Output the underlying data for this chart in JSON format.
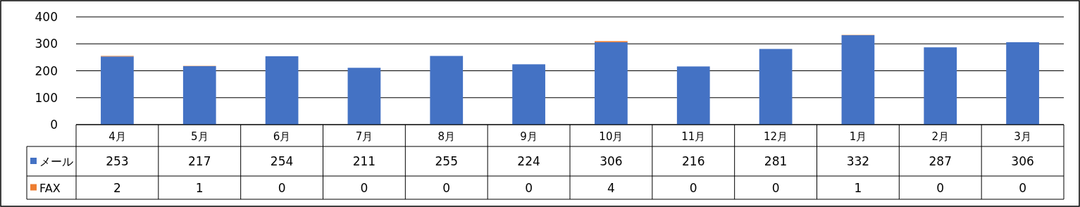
{
  "chart_data": {
    "type": "bar",
    "stacked": true,
    "categories": [
      "4月",
      "5月",
      "6月",
      "7月",
      "8月",
      "9月",
      "10月",
      "11月",
      "12月",
      "1月",
      "2月",
      "3月"
    ],
    "series": [
      {
        "name": "メール",
        "color": "#4472c4",
        "values": [
          253,
          217,
          254,
          211,
          255,
          224,
          306,
          216,
          281,
          332,
          287,
          306
        ]
      },
      {
        "name": "FAX",
        "color": "#ed7d31",
        "values": [
          2,
          1,
          0,
          0,
          0,
          0,
          4,
          0,
          0,
          1,
          0,
          0
        ]
      }
    ],
    "ylim": [
      0,
      400
    ],
    "yticks": [
      0,
      100,
      200,
      300,
      400
    ],
    "grid": "y",
    "data_labels": true,
    "legend": "bottom left"
  }
}
